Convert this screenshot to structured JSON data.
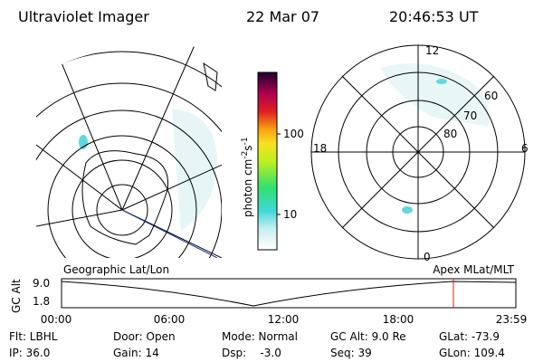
{
  "header": {
    "title": "Ultraviolet Imager",
    "date": "22 Mar 07",
    "time": "20:46:53 UT"
  },
  "colorbar": {
    "label_parts": [
      "photon cm",
      "-2",
      "s",
      "-1"
    ],
    "ticks": [
      "100",
      "10"
    ]
  },
  "polar": {
    "mlt_labels": {
      "top": "12",
      "left": "18",
      "right": "6",
      "bottom": "0"
    },
    "lat_labels": [
      "60",
      "70",
      "80"
    ]
  },
  "altitude_plot": {
    "left_label": "Geographic Lat/Lon",
    "right_label": "Apex MLat/MLT",
    "y_label": "GC Alt",
    "y_ticks": [
      "9.0",
      "1.8"
    ],
    "x_ticks": [
      "00:00",
      "06:00",
      "12:00",
      "18:00",
      "23:59"
    ]
  },
  "footer": {
    "rows": [
      [
        "Flt: LBHL",
        "Door: Open",
        "Mode: Normal",
        "GC Alt: 9.0 Re",
        "GLat: -73.9"
      ],
      [
        "IP: 36.0",
        "Gain: 14",
        "Dsp:    -3.0",
        "Seq: 39",
        "GLon: 109.4"
      ]
    ]
  }
}
